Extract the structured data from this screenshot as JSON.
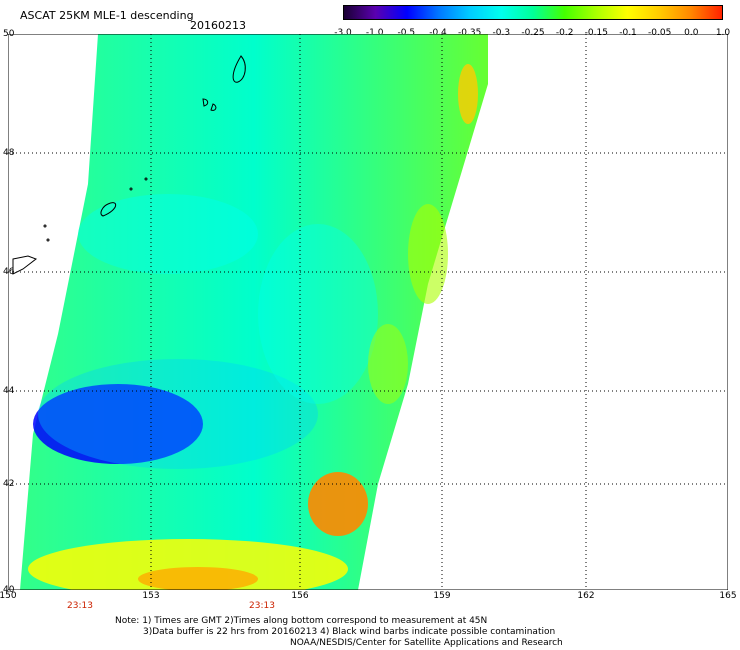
{
  "header": {
    "title": "ASCAT 25KM MLE-1 descending",
    "date": "20160213"
  },
  "colorbar": {
    "labels": [
      "-3.0",
      "-1.0",
      "-0.5",
      "-0.4",
      "-0.35",
      "-0.3",
      "-0.25",
      "-0.2",
      "-0.15",
      "-0.1",
      "-0.05",
      "0.0",
      "1.0"
    ],
    "colors": [
      "#1a0033",
      "#5a00b0",
      "#0000ff",
      "#0077ff",
      "#00ccff",
      "#00ffee",
      "#00ff99",
      "#44ff00",
      "#aaff00",
      "#ffff00",
      "#ffcc00",
      "#ff8800",
      "#ff2200"
    ]
  },
  "map": {
    "lat_labels": [
      "50",
      "48",
      "46",
      "44",
      "42",
      "40"
    ],
    "lon_labels": [
      "150",
      "153",
      "156",
      "159",
      "162",
      "165"
    ],
    "time_labels": [
      "23:13",
      "23:13"
    ]
  },
  "notes": {
    "line1": "Note: 1) Times are GMT 2)Times along bottom correspond to measurement at 45N",
    "line2": "3)Data buffer is 22 hrs from 20160213 4) Black wind barbs indicate possible contamination",
    "line3": "NOAA/NESDIS/Center for Satellite Applications and Research"
  }
}
